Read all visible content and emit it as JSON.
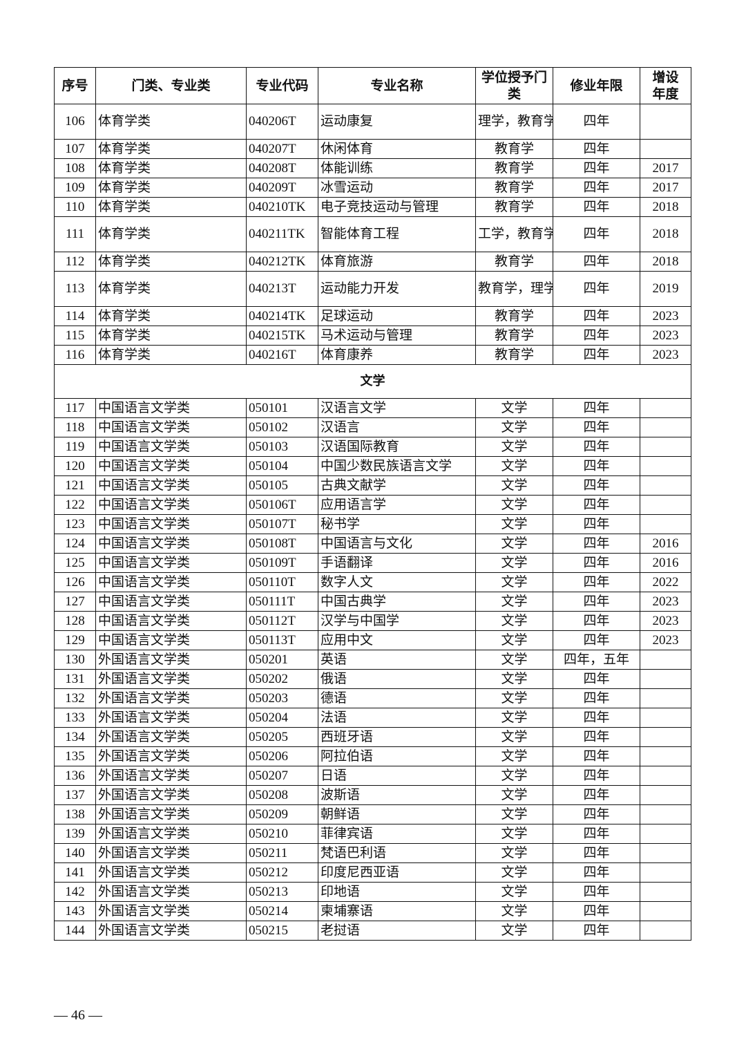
{
  "table": {
    "headers": [
      "序号",
      "门类、专业类",
      "专业代码",
      "专业名称",
      "学位授予门类",
      "修业年限",
      "增设年度"
    ],
    "rows": [
      {
        "type": "row",
        "cells": [
          "106",
          "体育学类",
          "040206T",
          "运动康复",
          "理学，教育学",
          "四年",
          ""
        ]
      },
      {
        "type": "row",
        "cells": [
          "107",
          "体育学类",
          "040207T",
          "休闲体育",
          "教育学",
          "四年",
          ""
        ]
      },
      {
        "type": "row",
        "cells": [
          "108",
          "体育学类",
          "040208T",
          "体能训练",
          "教育学",
          "四年",
          "2017"
        ]
      },
      {
        "type": "row",
        "cells": [
          "109",
          "体育学类",
          "040209T",
          "冰雪运动",
          "教育学",
          "四年",
          "2017"
        ]
      },
      {
        "type": "row",
        "cells": [
          "110",
          "体育学类",
          "040210TK",
          "电子竞技运动与管理",
          "教育学",
          "四年",
          "2018"
        ]
      },
      {
        "type": "row",
        "cells": [
          "111",
          "体育学类",
          "040211TK",
          "智能体育工程",
          "工学，教育学",
          "四年",
          "2018"
        ]
      },
      {
        "type": "row",
        "cells": [
          "112",
          "体育学类",
          "040212TK",
          "体育旅游",
          "教育学",
          "四年",
          "2018"
        ]
      },
      {
        "type": "row",
        "cells": [
          "113",
          "体育学类",
          "040213T",
          "运动能力开发",
          "教育学，理学",
          "四年",
          "2019"
        ]
      },
      {
        "type": "row",
        "cells": [
          "114",
          "体育学类",
          "040214TK",
          "足球运动",
          "教育学",
          "四年",
          "2023"
        ]
      },
      {
        "type": "row",
        "cells": [
          "115",
          "体育学类",
          "040215TK",
          "马术运动与管理",
          "教育学",
          "四年",
          "2023"
        ]
      },
      {
        "type": "row",
        "cells": [
          "116",
          "体育学类",
          "040216T",
          "体育康养",
          "教育学",
          "四年",
          "2023"
        ]
      },
      {
        "type": "section",
        "label": "文学"
      },
      {
        "type": "row",
        "cells": [
          "117",
          "中国语言文学类",
          "050101",
          "汉语言文学",
          "文学",
          "四年",
          ""
        ]
      },
      {
        "type": "row",
        "cells": [
          "118",
          "中国语言文学类",
          "050102",
          "汉语言",
          "文学",
          "四年",
          ""
        ]
      },
      {
        "type": "row",
        "cells": [
          "119",
          "中国语言文学类",
          "050103",
          "汉语国际教育",
          "文学",
          "四年",
          ""
        ]
      },
      {
        "type": "row",
        "cells": [
          "120",
          "中国语言文学类",
          "050104",
          "中国少数民族语言文学",
          "文学",
          "四年",
          ""
        ]
      },
      {
        "type": "row",
        "cells": [
          "121",
          "中国语言文学类",
          "050105",
          "古典文献学",
          "文学",
          "四年",
          ""
        ]
      },
      {
        "type": "row",
        "cells": [
          "122",
          "中国语言文学类",
          "050106T",
          "应用语言学",
          "文学",
          "四年",
          ""
        ]
      },
      {
        "type": "row",
        "cells": [
          "123",
          "中国语言文学类",
          "050107T",
          "秘书学",
          "文学",
          "四年",
          ""
        ]
      },
      {
        "type": "row",
        "cells": [
          "124",
          "中国语言文学类",
          "050108T",
          "中国语言与文化",
          "文学",
          "四年",
          "2016"
        ]
      },
      {
        "type": "row",
        "cells": [
          "125",
          "中国语言文学类",
          "050109T",
          "手语翻译",
          "文学",
          "四年",
          "2016"
        ]
      },
      {
        "type": "row",
        "cells": [
          "126",
          "中国语言文学类",
          "050110T",
          "数字人文",
          "文学",
          "四年",
          "2022"
        ]
      },
      {
        "type": "row",
        "cells": [
          "127",
          "中国语言文学类",
          "050111T",
          "中国古典学",
          "文学",
          "四年",
          "2023"
        ]
      },
      {
        "type": "row",
        "cells": [
          "128",
          "中国语言文学类",
          "050112T",
          "汉学与中国学",
          "文学",
          "四年",
          "2023"
        ]
      },
      {
        "type": "row",
        "cells": [
          "129",
          "中国语言文学类",
          "050113T",
          "应用中文",
          "文学",
          "四年",
          "2023"
        ]
      },
      {
        "type": "row",
        "cells": [
          "130",
          "外国语言文学类",
          "050201",
          "英语",
          "文学",
          "四年，五年",
          ""
        ]
      },
      {
        "type": "row",
        "cells": [
          "131",
          "外国语言文学类",
          "050202",
          "俄语",
          "文学",
          "四年",
          ""
        ]
      },
      {
        "type": "row",
        "cells": [
          "132",
          "外国语言文学类",
          "050203",
          "德语",
          "文学",
          "四年",
          ""
        ]
      },
      {
        "type": "row",
        "cells": [
          "133",
          "外国语言文学类",
          "050204",
          "法语",
          "文学",
          "四年",
          ""
        ]
      },
      {
        "type": "row",
        "cells": [
          "134",
          "外国语言文学类",
          "050205",
          "西班牙语",
          "文学",
          "四年",
          ""
        ]
      },
      {
        "type": "row",
        "cells": [
          "135",
          "外国语言文学类",
          "050206",
          "阿拉伯语",
          "文学",
          "四年",
          ""
        ]
      },
      {
        "type": "row",
        "cells": [
          "136",
          "外国语言文学类",
          "050207",
          "日语",
          "文学",
          "四年",
          ""
        ]
      },
      {
        "type": "row",
        "cells": [
          "137",
          "外国语言文学类",
          "050208",
          "波斯语",
          "文学",
          "四年",
          ""
        ]
      },
      {
        "type": "row",
        "cells": [
          "138",
          "外国语言文学类",
          "050209",
          "朝鲜语",
          "文学",
          "四年",
          ""
        ]
      },
      {
        "type": "row",
        "cells": [
          "139",
          "外国语言文学类",
          "050210",
          "菲律宾语",
          "文学",
          "四年",
          ""
        ]
      },
      {
        "type": "row",
        "cells": [
          "140",
          "外国语言文学类",
          "050211",
          "梵语巴利语",
          "文学",
          "四年",
          ""
        ]
      },
      {
        "type": "row",
        "cells": [
          "141",
          "外国语言文学类",
          "050212",
          "印度尼西亚语",
          "文学",
          "四年",
          ""
        ]
      },
      {
        "type": "row",
        "cells": [
          "142",
          "外国语言文学类",
          "050213",
          "印地语",
          "文学",
          "四年",
          ""
        ]
      },
      {
        "type": "row",
        "cells": [
          "143",
          "外国语言文学类",
          "050214",
          "柬埔寨语",
          "文学",
          "四年",
          ""
        ]
      },
      {
        "type": "row",
        "cells": [
          "144",
          "外国语言文学类",
          "050215",
          "老挝语",
          "文学",
          "四年",
          ""
        ]
      }
    ]
  },
  "footer": {
    "page_number": "— 46 —"
  }
}
